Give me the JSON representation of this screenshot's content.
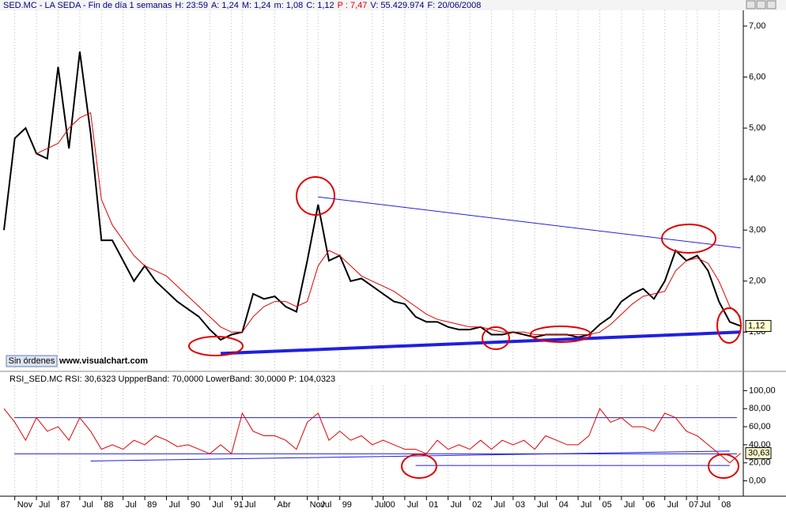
{
  "header": {
    "title": "SED.MC - LA SEDA - Fin de día 1 semanas",
    "fields": [
      "H: 23:59",
      "A: 1,24",
      "M: 1,24",
      "m: 1,08",
      "C: 1,12"
    ],
    "change": "P : 7,47",
    "volume": "V: 55.429.974",
    "date": "F: 20/06/2008"
  },
  "button": "Sin órdenes",
  "watermark": "www.visualchart.com",
  "chart_data": [
    {
      "type": "line",
      "ylim": [
        0.23,
        7.31
      ],
      "yticks": [
        {
          "value": 1,
          "label": "1,00"
        },
        {
          "value": 2,
          "label": "2,00"
        },
        {
          "value": 3,
          "label": "3,00"
        },
        {
          "value": 4,
          "label": "4,00"
        },
        {
          "value": 5,
          "label": "5,00"
        },
        {
          "value": 6,
          "label": "6,00"
        },
        {
          "value": 7,
          "label": "7,00"
        }
      ],
      "categories": [
        null,
        "Nov",
        null,
        "Jul",
        null,
        "87",
        null,
        "Jul",
        null,
        "88",
        null,
        "Jul",
        null,
        "89",
        null,
        "Jul",
        null,
        "90",
        null,
        "Jul",
        null,
        "91",
        "Jul",
        null,
        null,
        "Abr",
        null,
        null,
        "Nov",
        "Jul",
        null,
        "99",
        null,
        null,
        "Jul",
        "00",
        null,
        "Jul",
        null,
        "01",
        null,
        "Jul",
        null,
        "02",
        null,
        "Jul",
        null,
        "03",
        null,
        "Jul",
        null,
        "04",
        null,
        "Jul",
        null,
        "05",
        null,
        "Jul",
        null,
        "06",
        null,
        "Jul",
        null,
        "07",
        "Jul",
        null,
        "08",
        null,
        null
      ],
      "series": [
        {
          "color": "#000000",
          "values": [
            3.0,
            4.8,
            5.0,
            4.5,
            4.4,
            6.2,
            4.6,
            6.5,
            4.9,
            2.8,
            2.8,
            2.4,
            2.0,
            2.3,
            2.0,
            1.8,
            1.6,
            1.45,
            1.3,
            1.05,
            0.85,
            0.95,
            1.0,
            1.75,
            1.65,
            1.7,
            1.5,
            1.4,
            2.4,
            3.5,
            2.4,
            2.5,
            2.0,
            2.05,
            1.9,
            1.75,
            1.6,
            1.55,
            1.3,
            1.2,
            1.2,
            1.1,
            1.05,
            1.05,
            1.1,
            0.95,
            0.95,
            1.0,
            0.95,
            0.9,
            0.95,
            0.95,
            0.95,
            0.9,
            0.95,
            1.15,
            1.3,
            1.6,
            1.75,
            1.85,
            1.65,
            2.0,
            2.6,
            2.4,
            2.5,
            2.2,
            1.6,
            1.2,
            1.12
          ]
        },
        {
          "color": "#e00000",
          "values": [
            null,
            null,
            null,
            4.5,
            4.6,
            4.7,
            5.0,
            5.2,
            5.3,
            3.6,
            3.1,
            2.8,
            2.5,
            2.3,
            2.2,
            2.1,
            1.9,
            1.7,
            1.5,
            1.3,
            1.1,
            1.0,
            1.0,
            1.3,
            1.5,
            1.6,
            1.6,
            1.5,
            1.6,
            2.3,
            2.6,
            2.5,
            2.3,
            2.1,
            2.0,
            1.9,
            1.8,
            1.65,
            1.5,
            1.35,
            1.25,
            1.2,
            1.15,
            1.1,
            1.1,
            1.05,
            1.0,
            1.0,
            1.0,
            0.95,
            0.95,
            0.95,
            0.95,
            0.95,
            0.95,
            1.0,
            1.15,
            1.35,
            1.55,
            1.7,
            1.75,
            1.8,
            2.2,
            2.4,
            2.45,
            2.35,
            2.0,
            1.5,
            1.3
          ]
        }
      ],
      "trendlines": [
        {
          "x": [
            29,
            68
          ],
          "values": [
            3.65,
            2.65
          ],
          "color": "#2020e0",
          "weight": "normal"
        },
        {
          "x": [
            20,
            68
          ],
          "values": [
            0.58,
            1.0
          ],
          "color": "#2020e0",
          "weight": "bold"
        }
      ],
      "last": {
        "value": 1.12,
        "label": "1,12"
      }
    },
    {
      "type": "line",
      "title": "RSI_SED.MC RSI: 30,6323 UppperBand: 70,0000 LowerBand: 30,0000 P: 104,0323",
      "ylim": [
        -17,
        105.6
      ],
      "yticks": [
        {
          "value": 0,
          "label": "0,00"
        },
        {
          "value": 20,
          "label": "20,00"
        },
        {
          "value": 40,
          "label": "40,00"
        },
        {
          "value": 60,
          "label": "60,00"
        },
        {
          "value": 80,
          "label": "80,00"
        },
        {
          "value": 100,
          "label": "100,00"
        }
      ],
      "bands": [
        70,
        30
      ],
      "series": [
        {
          "color": "#e00000",
          "values": [
            80,
            65,
            45,
            70,
            55,
            60,
            45,
            70,
            55,
            35,
            40,
            35,
            45,
            40,
            50,
            45,
            38,
            40,
            35,
            30,
            40,
            30,
            75,
            55,
            50,
            50,
            45,
            35,
            65,
            75,
            45,
            55,
            45,
            50,
            40,
            45,
            40,
            35,
            35,
            30,
            45,
            35,
            40,
            35,
            45,
            35,
            45,
            40,
            45,
            35,
            50,
            45,
            40,
            40,
            50,
            80,
            65,
            70,
            60,
            60,
            55,
            75,
            70,
            55,
            50,
            40,
            30,
            20,
            30.6323
          ]
        }
      ],
      "trendlines": [
        {
          "x": [
            8,
            67
          ],
          "values": [
            22,
            33
          ],
          "color": "#2020e0",
          "weight": "normal"
        },
        {
          "x": [
            38,
            67
          ],
          "values": [
            17,
            17
          ],
          "color": "#2020e0",
          "weight": "normal"
        }
      ],
      "last": {
        "value": 30.6323,
        "label": "30,63"
      }
    }
  ]
}
